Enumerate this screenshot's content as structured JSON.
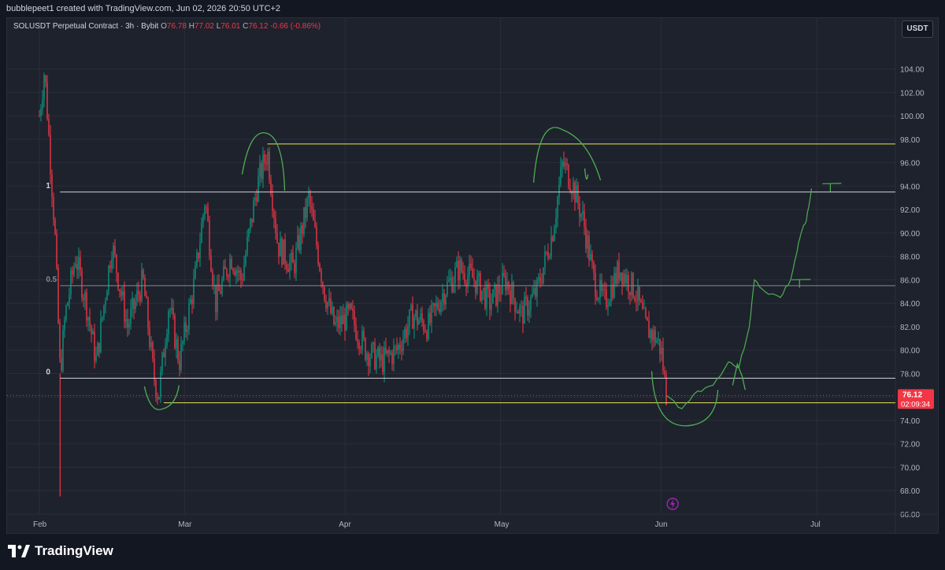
{
  "header": {
    "attribution": "bubblepeet1 created with TradingView.com, Jun 02, 2026 20:50 UTC+2"
  },
  "legend": {
    "symbol": "SOLUSDT Perpetual Contract · 3h · Bybit",
    "open_label": "O",
    "open": "76.78",
    "high_label": "H",
    "high": "77.02",
    "low_label": "L",
    "low": "76.01",
    "close_label": "C",
    "close": "76.12",
    "change": "-0.66 (-0.86%)"
  },
  "currency": "USDT",
  "price_tag": {
    "value": "76.12",
    "countdown": "02:09:34",
    "color": "#f23645"
  },
  "footer": {
    "logo_text": "TradingView"
  },
  "colors": {
    "up": "#089981",
    "down": "#f23645",
    "level_yellow": "#e8e35a",
    "level_white": "#d1d4dc",
    "drawing_green": "#4caf50",
    "grid": "#2a2e39",
    "background": "#1e222d",
    "event_purple": "#9c27b0"
  },
  "chart_data": {
    "type": "candlestick",
    "y_axis": {
      "range": [
        66,
        107
      ],
      "ticks": [
        "66.00",
        "68.00",
        "70.00",
        "72.00",
        "74.00",
        "76.00",
        "78.00",
        "80.00",
        "82.00",
        "84.00",
        "86.00",
        "88.00",
        "90.00",
        "92.00",
        "94.00",
        "96.00",
        "98.00",
        "100.00",
        "102.00",
        "104.00"
      ]
    },
    "x_axis": {
      "labels": [
        "Feb",
        "Mar",
        "Apr",
        "May",
        "Jun",
        "Jul"
      ]
    },
    "price_path": [
      [
        "Feb 01",
        100
      ],
      [
        "Feb 02",
        104
      ],
      [
        "Feb 03",
        97
      ],
      [
        "Feb 04",
        90
      ],
      [
        "Feb 05",
        78
      ],
      [
        "Feb 06",
        83
      ],
      [
        "Feb 08",
        88
      ],
      [
        "Feb 10",
        84
      ],
      [
        "Feb 12",
        79
      ],
      [
        "Feb 15",
        89
      ],
      [
        "Feb 18",
        82
      ],
      [
        "Feb 21",
        86
      ],
      [
        "Feb 23",
        78
      ],
      [
        "Feb 24",
        76
      ],
      [
        "Feb 26",
        84
      ],
      [
        "Feb 28",
        79
      ],
      [
        "Mar 03",
        86
      ],
      [
        "Mar 05",
        93
      ],
      [
        "Mar 07",
        84
      ],
      [
        "Mar 10",
        88
      ],
      [
        "Mar 12",
        86
      ],
      [
        "Mar 15",
        94
      ],
      [
        "Mar 17",
        97
      ],
      [
        "Mar 19",
        89
      ],
      [
        "Mar 22",
        87
      ],
      [
        "Mar 25",
        93
      ],
      [
        "Mar 28",
        85
      ],
      [
        "Mar 30",
        82
      ],
      [
        "Apr 02",
        83
      ],
      [
        "Apr 05",
        80
      ],
      [
        "Apr 08",
        79
      ],
      [
        "Apr 11",
        80
      ],
      [
        "Apr 14",
        83
      ],
      [
        "Apr 17",
        82
      ],
      [
        "Apr 20",
        85
      ],
      [
        "Apr 23",
        87
      ],
      [
        "Apr 26",
        86
      ],
      [
        "Apr 29",
        84
      ],
      [
        "May 02",
        86
      ],
      [
        "May 05",
        83
      ],
      [
        "May 08",
        85
      ],
      [
        "May 11",
        90
      ],
      [
        "May 13",
        96
      ],
      [
        "May 15",
        94
      ],
      [
        "May 17",
        91
      ],
      [
        "May 19",
        86
      ],
      [
        "May 21",
        84
      ],
      [
        "May 24",
        87
      ],
      [
        "May 27",
        85
      ],
      [
        "May 29",
        82
      ],
      [
        "May 31",
        81
      ],
      [
        "Jun 01",
        80
      ],
      [
        "Jun 02",
        76.12
      ]
    ],
    "spike_low": {
      "x": "Feb 05",
      "value": 67.5
    },
    "horizontal_levels": [
      {
        "name": "top-resistance",
        "value": 97.6,
        "color": "#e8e35a",
        "from": "Mar 17"
      },
      {
        "name": "fib-1",
        "value": 93.5,
        "color": "#d1d4dc",
        "label": "1",
        "from": "Feb 05"
      },
      {
        "name": "fib-0.5",
        "value": 85.5,
        "color": "#868993",
        "label": "0.5",
        "from": "Feb 05"
      },
      {
        "name": "fib-0",
        "value": 77.6,
        "color": "#d1d4dc",
        "label": "0",
        "from": "Feb 05"
      },
      {
        "name": "bottom-support",
        "value": 75.5,
        "color": "#e8e35a",
        "from": "Feb 25"
      }
    ],
    "current_price": 76.12,
    "projection_path": [
      [
        "Jun 02",
        76.12
      ],
      [
        "Jun 05",
        75.0
      ],
      [
        "Jun 08",
        76.5
      ],
      [
        "Jun 11",
        77.0
      ],
      [
        "Jun 14",
        79.0
      ],
      [
        "Jun 16",
        78.5
      ],
      [
        "Jun 18",
        82.0
      ],
      [
        "Jun 19",
        86.0
      ],
      [
        "Jun 21",
        85.0
      ],
      [
        "Jun 24",
        84.5
      ],
      [
        "Jun 26",
        86.0
      ],
      [
        "Jun 27",
        88.0
      ],
      [
        "Jun 28",
        90.0
      ],
      [
        "Jun 29",
        91.0
      ],
      [
        "Jun 30",
        93.8
      ]
    ],
    "targets": [
      {
        "x": "Jun 30",
        "value": 94.2
      },
      {
        "x": "Jun 28",
        "value": 86.0
      }
    ]
  }
}
